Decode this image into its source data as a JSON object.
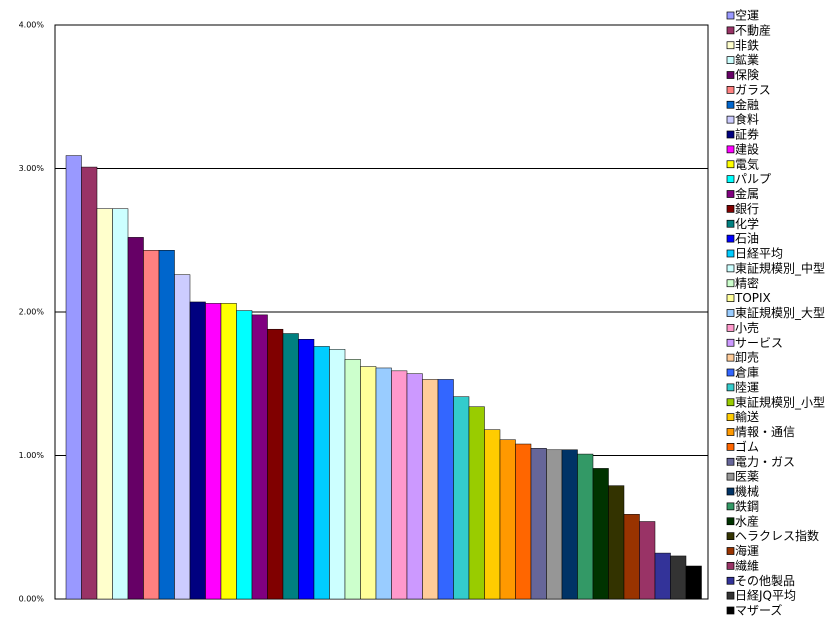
{
  "chart_data": {
    "type": "bar",
    "categories": [
      "空運",
      "不動産",
      "非鉄",
      "鉱業",
      "保険",
      "ガラス",
      "金融",
      "食料",
      "証券",
      "建設",
      "電気",
      "パルプ",
      "金属",
      "銀行",
      "化学",
      "石油",
      "日経平均",
      "東証規模別_中型",
      "精密",
      "TOPIX",
      "東証規模別_大型",
      "小売",
      "サービス",
      "卸売",
      "倉庫",
      "陸運",
      "東証規模別_小型",
      "輸送",
      "情報・通信",
      "ゴム",
      "電力・ガス",
      "医薬",
      "機械",
      "鉄鋼",
      "水産",
      "ヘラクレス指数",
      "海運",
      "繊維",
      "その他製品",
      "日経JQ平均",
      "マザーズ"
    ],
    "values": [
      3.09,
      3.01,
      2.72,
      2.72,
      2.52,
      2.43,
      2.43,
      2.26,
      2.07,
      2.06,
      2.06,
      2.01,
      1.98,
      1.88,
      1.85,
      1.81,
      1.76,
      1.74,
      1.67,
      1.62,
      1.61,
      1.59,
      1.57,
      1.53,
      1.53,
      1.41,
      1.34,
      1.18,
      1.11,
      1.08,
      1.05,
      1.04,
      1.04,
      1.01,
      0.91,
      0.79,
      0.59,
      0.54,
      0.32,
      0.3,
      0.23
    ],
    "colors": [
      "#9999ff",
      "#993366",
      "#ffffcc",
      "#ccffff",
      "#660066",
      "#ff8080",
      "#0066cc",
      "#ccccff",
      "#000080",
      "#ff00ff",
      "#ffff00",
      "#00ffff",
      "#800080",
      "#800000",
      "#008080",
      "#0000ff",
      "#00ccff",
      "#ccffff",
      "#ccffcc",
      "#ffff99",
      "#99ccff",
      "#ff99cc",
      "#cc99ff",
      "#ffcc99",
      "#3366ff",
      "#33cccc",
      "#99cc00",
      "#ffcc00",
      "#ff9900",
      "#ff6600",
      "#666699",
      "#969696",
      "#003366",
      "#339966",
      "#003300",
      "#333300",
      "#993300",
      "#993366",
      "#333399",
      "#333333",
      "#000000"
    ],
    "ylim": [
      0,
      4
    ],
    "yticks": [
      {
        "value": 0,
        "label": "0.00%"
      },
      {
        "value": 1,
        "label": "1.00%"
      },
      {
        "value": 2,
        "label": "2.00%"
      },
      {
        "value": 3,
        "label": "3.00%"
      },
      {
        "value": 4,
        "label": "4.00%"
      }
    ],
    "grid": true,
    "legend": "right"
  }
}
